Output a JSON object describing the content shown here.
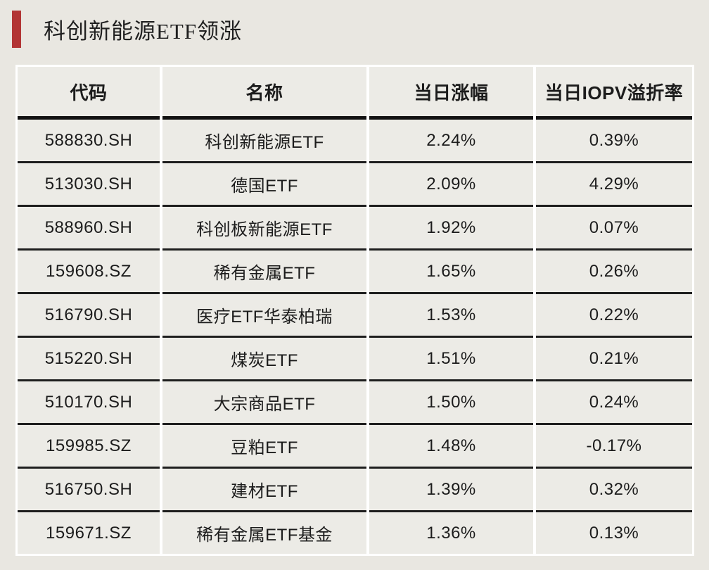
{
  "page": {
    "background_color": "#e9e7e1",
    "accent_color": "#b23535",
    "text_color": "#1c1c1c"
  },
  "title": "科创新能源ETF领涨",
  "table": {
    "headers": [
      "代码",
      "名称",
      "当日涨幅",
      "当日IOPV溢折率"
    ],
    "rows": [
      [
        "588830.SH",
        "科创新能源ETF",
        "2.24%",
        "0.39%"
      ],
      [
        "513030.SH",
        "德国ETF",
        "2.09%",
        "4.29%"
      ],
      [
        "588960.SH",
        "科创板新能源ETF",
        "1.92%",
        "0.07%"
      ],
      [
        "159608.SZ",
        "稀有金属ETF",
        "1.65%",
        "0.26%"
      ],
      [
        "516790.SH",
        "医疗ETF华泰柏瑞",
        "1.53%",
        "0.22%"
      ],
      [
        "515220.SH",
        "煤炭ETF",
        "1.51%",
        "0.21%"
      ],
      [
        "510170.SH",
        "大宗商品ETF",
        "1.50%",
        "0.24%"
      ],
      [
        "159985.SZ",
        "豆粕ETF",
        "1.48%",
        "-0.17%"
      ],
      [
        "516750.SH",
        "建材ETF",
        "1.39%",
        "0.32%"
      ],
      [
        "159671.SZ",
        "稀有金属ETF基金",
        "1.36%",
        "0.13%"
      ]
    ]
  }
}
